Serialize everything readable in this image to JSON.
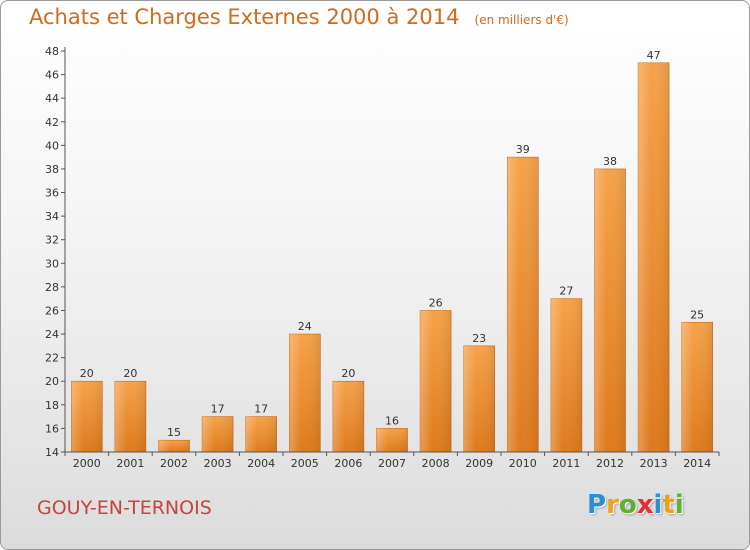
{
  "chart_data": {
    "type": "bar",
    "title": "Achats et Charges Externes 2000 à 2014",
    "unit": "(en milliers d'€)",
    "categories": [
      "2000",
      "2001",
      "2002",
      "2003",
      "2004",
      "2005",
      "2006",
      "2007",
      "2008",
      "2009",
      "2010",
      "2011",
      "2012",
      "2013",
      "2014"
    ],
    "values": [
      20,
      20,
      15,
      17,
      17,
      24,
      20,
      16,
      26,
      23,
      39,
      27,
      38,
      47,
      25
    ],
    "ylim": [
      14,
      48
    ],
    "yticks": [
      14,
      16,
      18,
      20,
      22,
      24,
      26,
      28,
      30,
      32,
      34,
      36,
      38,
      40,
      42,
      44,
      46,
      48
    ],
    "grid": false,
    "bar_color": "#f29a3c"
  },
  "commune": "GOUY-EN-TERNOIS",
  "logo": {
    "letters": [
      "P",
      "r",
      "o",
      "x",
      "i",
      "t",
      "i"
    ],
    "colors": [
      "#2c8fd6",
      "#f0a020",
      "#60b030",
      "#e03030",
      "#2c8fd6",
      "#f0a020",
      "#60b030"
    ]
  }
}
